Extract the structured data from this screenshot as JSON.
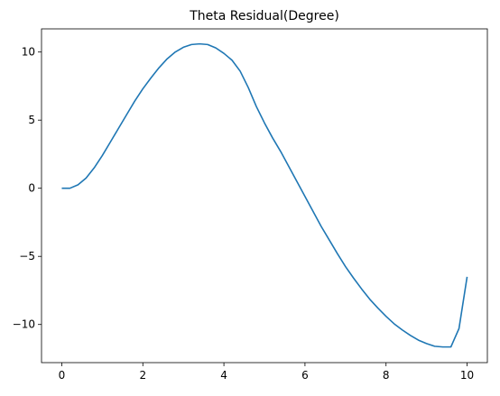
{
  "chart_data": {
    "type": "line",
    "title": "Theta Residual(Degree)",
    "x": [
      0,
      0.2,
      0.4,
      0.6,
      0.8,
      1.0,
      1.2,
      1.4,
      1.6,
      1.8,
      2.0,
      2.2,
      2.4,
      2.6,
      2.8,
      3.0,
      3.2,
      3.4,
      3.6,
      3.8,
      4.0,
      4.2,
      4.4,
      4.6,
      4.8,
      5.0,
      5.2,
      5.4,
      5.6,
      5.8,
      6.0,
      6.2,
      6.4,
      6.6,
      6.8,
      7.0,
      7.2,
      7.4,
      7.6,
      7.8,
      8.0,
      8.2,
      8.4,
      8.6,
      8.8,
      9.0,
      9.2,
      9.4,
      9.6,
      9.8,
      10.0
    ],
    "series": [
      {
        "color": "#1f77b4",
        "values": [
          0,
          0,
          0.25,
          0.75,
          1.5,
          2.4,
          3.4,
          4.4,
          5.4,
          6.4,
          7.3,
          8.1,
          8.85,
          9.5,
          10.0,
          10.35,
          10.55,
          10.6,
          10.55,
          10.3,
          9.9,
          9.4,
          8.6,
          7.4,
          6.0,
          4.8,
          3.7,
          2.7,
          1.6,
          0.5,
          -0.6,
          -1.7,
          -2.8,
          -3.8,
          -4.8,
          -5.75,
          -6.6,
          -7.4,
          -8.15,
          -8.8,
          -9.4,
          -9.95,
          -10.4,
          -10.8,
          -11.15,
          -11.4,
          -11.6,
          -11.65,
          -11.65,
          -10.3,
          -6.5
        ]
      }
    ],
    "xlim": [
      -0.5,
      10.5
    ],
    "xticks": [
      0,
      2,
      4,
      6,
      8,
      10
    ],
    "ylim": [
      -12.8,
      11.7
    ],
    "yticks": [
      {
        "value": -10,
        "label": "−10"
      },
      {
        "value": -5,
        "label": "−5"
      },
      0,
      5,
      10
    ]
  }
}
